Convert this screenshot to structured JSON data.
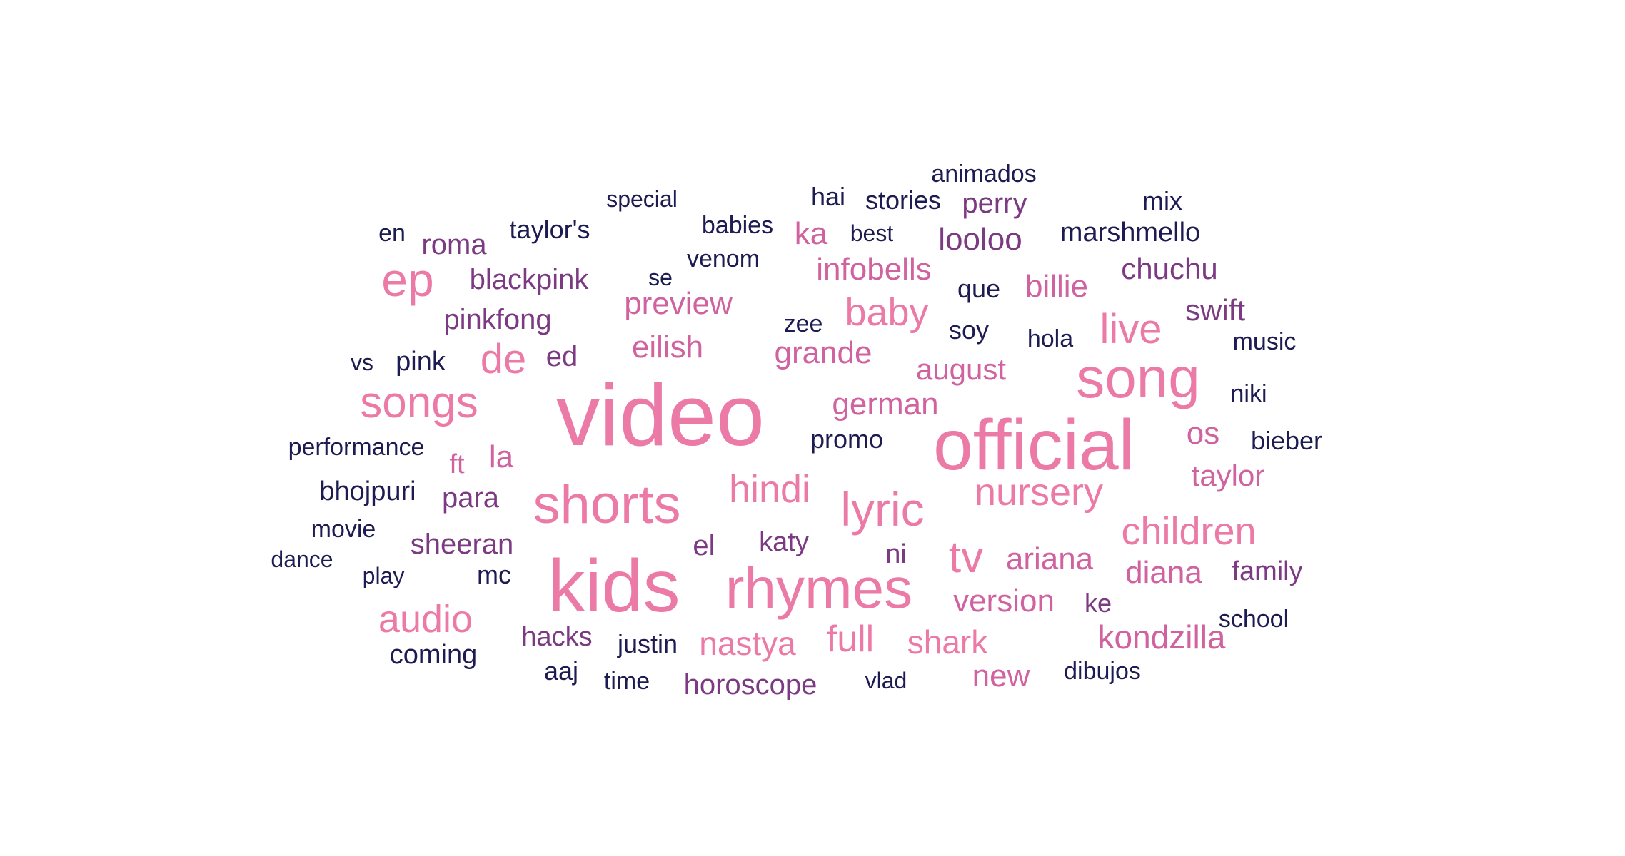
{
  "palette": {
    "pink": "#ec7aa7",
    "magenta": "#d0629f",
    "purple": "#7b3a82",
    "navy": "#1d1c52"
  },
  "words": [
    {
      "text": "video",
      "color": "pink"
    },
    {
      "text": "kids",
      "color": "pink"
    },
    {
      "text": "official",
      "color": "pink"
    },
    {
      "text": "song",
      "color": "pink"
    },
    {
      "text": "rhymes",
      "color": "pink"
    },
    {
      "text": "shorts",
      "color": "pink"
    },
    {
      "text": "songs",
      "color": "pink"
    },
    {
      "text": "ep",
      "color": "pink"
    },
    {
      "text": "lyric",
      "color": "pink"
    },
    {
      "text": "hindi",
      "color": "pink"
    },
    {
      "text": "nursery",
      "color": "pink"
    },
    {
      "text": "children",
      "color": "pink"
    },
    {
      "text": "tv",
      "color": "pink"
    },
    {
      "text": "audio",
      "color": "pink"
    },
    {
      "text": "baby",
      "color": "pink"
    },
    {
      "text": "live",
      "color": "pink"
    },
    {
      "text": "de",
      "color": "pink"
    },
    {
      "text": "full",
      "color": "pink"
    },
    {
      "text": "nastya",
      "color": "pink"
    },
    {
      "text": "shark",
      "color": "pink"
    },
    {
      "text": "kondzilla",
      "color": "magenta"
    },
    {
      "text": "diana",
      "color": "magenta"
    },
    {
      "text": "ariana",
      "color": "magenta"
    },
    {
      "text": "version",
      "color": "magenta"
    },
    {
      "text": "new",
      "color": "magenta"
    },
    {
      "text": "german",
      "color": "magenta"
    },
    {
      "text": "august",
      "color": "magenta"
    },
    {
      "text": "grande",
      "color": "magenta"
    },
    {
      "text": "eilish",
      "color": "magenta"
    },
    {
      "text": "preview",
      "color": "magenta"
    },
    {
      "text": "infobells",
      "color": "magenta"
    },
    {
      "text": "billie",
      "color": "magenta"
    },
    {
      "text": "taylor",
      "color": "magenta"
    },
    {
      "text": "os",
      "color": "magenta"
    },
    {
      "text": "la",
      "color": "magenta"
    },
    {
      "text": "ft",
      "color": "magenta"
    },
    {
      "text": "ka",
      "color": "magenta"
    },
    {
      "text": "sheeran",
      "color": "purple"
    },
    {
      "text": "para",
      "color": "purple"
    },
    {
      "text": "pinkfong",
      "color": "purple"
    },
    {
      "text": "blackpink",
      "color": "purple"
    },
    {
      "text": "roma",
      "color": "purple"
    },
    {
      "text": "ed",
      "color": "purple"
    },
    {
      "text": "looloo",
      "color": "purple"
    },
    {
      "text": "perry",
      "color": "purple"
    },
    {
      "text": "chuchu",
      "color": "purple"
    },
    {
      "text": "swift",
      "color": "purple"
    },
    {
      "text": "family",
      "color": "purple"
    },
    {
      "text": "horoscope",
      "color": "purple"
    },
    {
      "text": "hacks",
      "color": "purple"
    },
    {
      "text": "katy",
      "color": "purple"
    },
    {
      "text": "el",
      "color": "purple"
    },
    {
      "text": "ni",
      "color": "purple"
    },
    {
      "text": "ke",
      "color": "purple"
    },
    {
      "text": "animados",
      "color": "navy"
    },
    {
      "text": "special",
      "color": "navy"
    },
    {
      "text": "hai",
      "color": "navy"
    },
    {
      "text": "stories",
      "color": "navy"
    },
    {
      "text": "mix",
      "color": "navy"
    },
    {
      "text": "en",
      "color": "navy"
    },
    {
      "text": "taylor's",
      "color": "navy"
    },
    {
      "text": "babies",
      "color": "navy"
    },
    {
      "text": "best",
      "color": "navy"
    },
    {
      "text": "marshmello",
      "color": "navy"
    },
    {
      "text": "venom",
      "color": "navy"
    },
    {
      "text": "se",
      "color": "navy"
    },
    {
      "text": "que",
      "color": "navy"
    },
    {
      "text": "zee",
      "color": "navy"
    },
    {
      "text": "soy",
      "color": "navy"
    },
    {
      "text": "hola",
      "color": "navy"
    },
    {
      "text": "music",
      "color": "navy"
    },
    {
      "text": "vs",
      "color": "navy"
    },
    {
      "text": "pink",
      "color": "navy"
    },
    {
      "text": "niki",
      "color": "navy"
    },
    {
      "text": "performance",
      "color": "navy"
    },
    {
      "text": "promo",
      "color": "navy"
    },
    {
      "text": "bieber",
      "color": "navy"
    },
    {
      "text": "bhojpuri",
      "color": "navy"
    },
    {
      "text": "movie",
      "color": "navy"
    },
    {
      "text": "dance",
      "color": "navy"
    },
    {
      "text": "play",
      "color": "navy"
    },
    {
      "text": "mc",
      "color": "navy"
    },
    {
      "text": "school",
      "color": "navy"
    },
    {
      "text": "justin",
      "color": "navy"
    },
    {
      "text": "coming",
      "color": "navy"
    },
    {
      "text": "aaj",
      "color": "navy"
    },
    {
      "text": "time",
      "color": "navy"
    },
    {
      "text": "vlad",
      "color": "navy"
    },
    {
      "text": "dibujos",
      "color": "navy"
    }
  ]
}
